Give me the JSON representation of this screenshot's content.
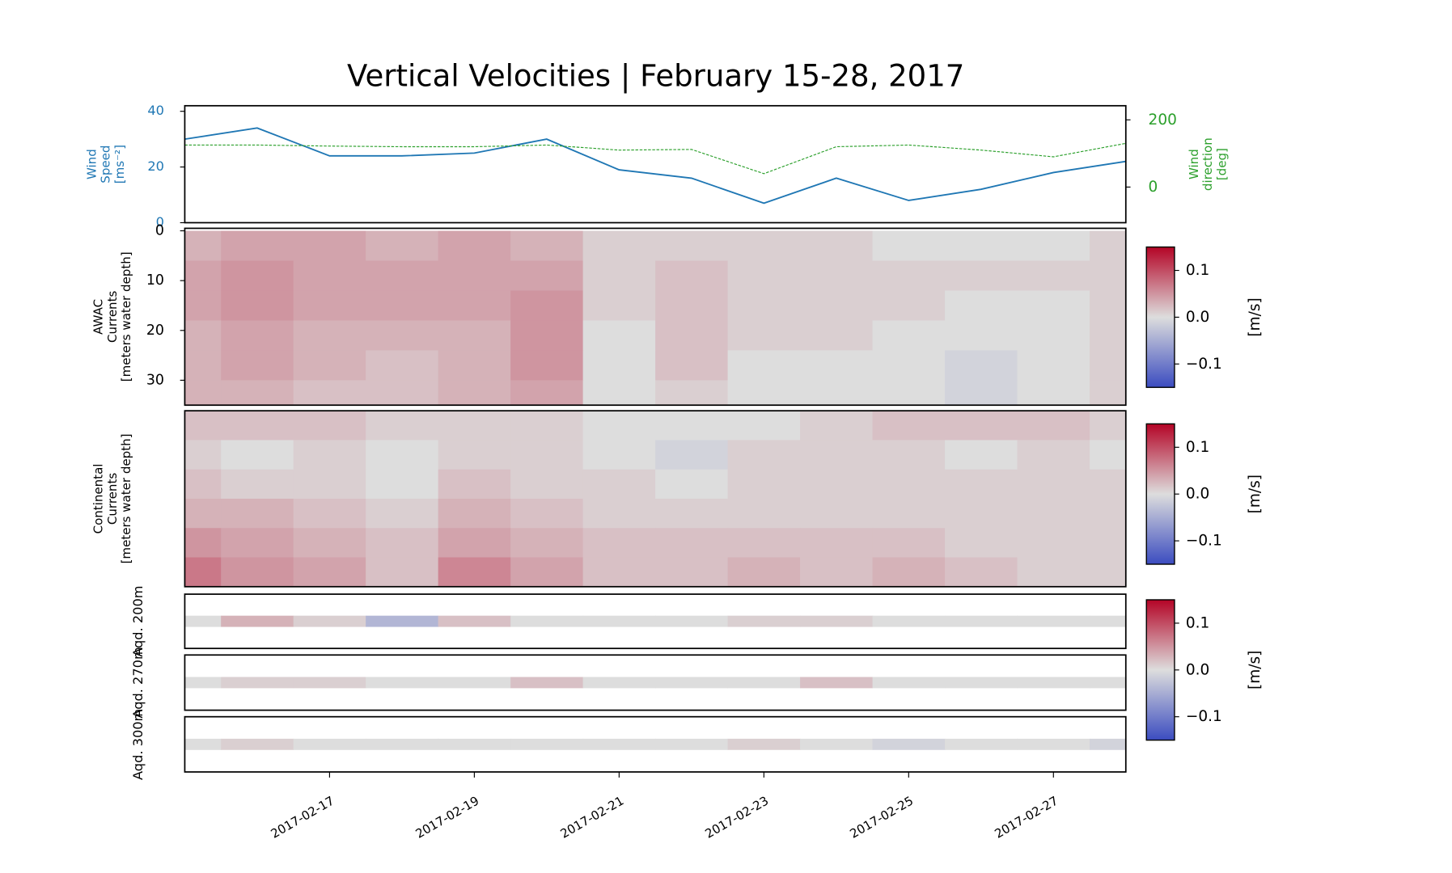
{
  "title": "Vertical Velocities | February 15-28, 2017",
  "chart_data": [
    {
      "type": "line",
      "ylabel": [
        "Wind",
        "Speed",
        "[ms⁻²]"
      ],
      "y2label": [
        "Wind",
        "direction",
        "[deg]"
      ],
      "x": [
        "2017-02-15",
        "2017-02-16",
        "2017-02-17",
        "2017-02-18",
        "2017-02-19",
        "2017-02-20",
        "2017-02-21",
        "2017-02-22",
        "2017-02-23",
        "2017-02-24",
        "2017-02-25",
        "2017-02-26",
        "2017-02-27",
        "2017-02-28"
      ],
      "series": [
        {
          "color": "#1f77b4",
          "values": [
            30,
            34,
            24,
            24,
            25,
            30,
            19,
            16,
            7,
            16,
            8,
            12,
            18,
            22
          ]
        },
        {
          "color": "#2ca02c",
          "axis": "y2",
          "values": [
            125,
            125,
            122,
            120,
            120,
            125,
            110,
            112,
            40,
            120,
            125,
            110,
            90,
            130
          ]
        }
      ],
      "xlim": [
        "2017-02-15",
        "2017-02-28"
      ],
      "ylim": [
        0,
        42
      ],
      "yticks": [
        0,
        20,
        40
      ],
      "y2lim": [
        -106,
        242
      ],
      "y2ticks": [
        0,
        200
      ]
    },
    {
      "type": "heatmap",
      "ylabel": [
        "AWAC",
        "Currents",
        "[meters water depth]"
      ],
      "x": [
        "2017-02-15",
        "2017-02-16",
        "2017-02-17",
        "2017-02-18",
        "2017-02-19",
        "2017-02-20",
        "2017-02-21",
        "2017-02-22",
        "2017-02-23",
        "2017-02-24",
        "2017-02-25",
        "2017-02-26",
        "2017-02-27",
        "2017-02-28"
      ],
      "y": [
        3,
        9,
        15,
        21,
        27,
        33
      ],
      "values": [
        [
          0.03,
          0.04,
          0.04,
          0.03,
          0.04,
          0.03,
          0.01,
          0.01,
          0.01,
          0.01,
          0.0,
          0.0,
          0.0,
          0.01
        ],
        [
          0.04,
          0.05,
          0.04,
          0.04,
          0.04,
          0.04,
          0.01,
          0.02,
          0.01,
          0.01,
          0.01,
          0.01,
          0.01,
          0.01
        ],
        [
          0.04,
          0.05,
          0.04,
          0.04,
          0.04,
          0.05,
          0.01,
          0.02,
          0.01,
          0.01,
          0.01,
          0.0,
          0.0,
          0.01
        ],
        [
          0.03,
          0.04,
          0.03,
          0.03,
          0.03,
          0.05,
          0.0,
          0.02,
          0.01,
          0.01,
          0.0,
          0.0,
          0.0,
          0.01
        ],
        [
          0.03,
          0.04,
          0.03,
          0.02,
          0.03,
          0.05,
          0.0,
          0.02,
          0.0,
          0.0,
          0.0,
          -0.01,
          0.0,
          0.01
        ],
        [
          0.03,
          0.03,
          0.02,
          0.02,
          0.03,
          0.04,
          0.0,
          0.01,
          0.0,
          0.0,
          0.0,
          -0.01,
          0.0,
          0.01
        ]
      ],
      "xlim": [
        "2017-02-15",
        "2017-02-28"
      ],
      "ylim": [
        35,
        -0.5
      ],
      "yticks": [
        0,
        10,
        20,
        30
      ],
      "clim": [
        -0.15,
        0.15
      ],
      "colormap": [
        "#3b4cc0",
        "#dddddd",
        "#b40426"
      ],
      "colorbar_ticks": [
        {
          "value": 0.1,
          "label": "0.1"
        },
        {
          "value": 0,
          "label": "0.0"
        },
        {
          "value": -0.1,
          "label": "−0.1"
        }
      ],
      "colorbar_label": "[m/s]"
    },
    {
      "type": "heatmap",
      "ylabel": [
        "Continental",
        "Currents",
        "[meters water depth]"
      ],
      "x": [
        "2017-02-15",
        "2017-02-16",
        "2017-02-17",
        "2017-02-18",
        "2017-02-19",
        "2017-02-20",
        "2017-02-21",
        "2017-02-22",
        "2017-02-23",
        "2017-02-24",
        "2017-02-25",
        "2017-02-26",
        "2017-02-27",
        "2017-02-28"
      ],
      "values": [
        [
          0.02,
          0.02,
          0.02,
          0.01,
          0.01,
          0.01,
          0.0,
          0.0,
          0.0,
          0.01,
          0.02,
          0.02,
          0.02,
          0.01
        ],
        [
          0.01,
          0.0,
          0.01,
          0.0,
          0.01,
          0.01,
          0.0,
          -0.01,
          0.01,
          0.01,
          0.01,
          0.0,
          0.01,
          0.0
        ],
        [
          0.02,
          0.01,
          0.01,
          0.0,
          0.02,
          0.01,
          0.01,
          0.0,
          0.01,
          0.01,
          0.01,
          0.01,
          0.01,
          0.01
        ],
        [
          0.03,
          0.03,
          0.02,
          0.01,
          0.03,
          0.02,
          0.01,
          0.01,
          0.01,
          0.01,
          0.01,
          0.01,
          0.01,
          0.01
        ],
        [
          0.05,
          0.04,
          0.03,
          0.02,
          0.04,
          0.03,
          0.02,
          0.02,
          0.02,
          0.02,
          0.02,
          0.01,
          0.01,
          0.01
        ],
        [
          0.07,
          0.05,
          0.04,
          0.02,
          0.06,
          0.04,
          0.02,
          0.02,
          0.03,
          0.02,
          0.03,
          0.02,
          0.01,
          0.01
        ]
      ],
      "xlim": [
        "2017-02-15",
        "2017-02-28"
      ],
      "clim": [
        -0.15,
        0.15
      ],
      "colormap": [
        "#3b4cc0",
        "#dddddd",
        "#b40426"
      ],
      "colorbar_ticks": [
        {
          "value": 0.1,
          "label": "0.1"
        },
        {
          "value": 0,
          "label": "0.0"
        },
        {
          "value": -0.1,
          "label": "−0.1"
        }
      ],
      "colorbar_label": "[m/s]"
    },
    {
      "type": "heatmap-rows",
      "x": [
        "2017-02-15",
        "2017-02-16",
        "2017-02-17",
        "2017-02-18",
        "2017-02-19",
        "2017-02-20",
        "2017-02-21",
        "2017-02-22",
        "2017-02-23",
        "2017-02-24",
        "2017-02-25",
        "2017-02-26",
        "2017-02-27",
        "2017-02-28"
      ],
      "series": [
        {
          "name": "Aqd. 200m",
          "values": [
            0.0,
            0.03,
            0.01,
            -0.04,
            0.02,
            0.0,
            0.0,
            0.0,
            0.01,
            0.01,
            0.0,
            0.0,
            0.0,
            0.0
          ]
        },
        {
          "name": "Aqd. 270m",
          "values": [
            0.0,
            0.01,
            0.01,
            0.0,
            0.0,
            0.02,
            0.0,
            0.0,
            0.0,
            0.02,
            0.0,
            0.0,
            0.0,
            0.0
          ]
        },
        {
          "name": "Aqd. 300m",
          "values": [
            0.0,
            0.01,
            0.0,
            0.0,
            0.0,
            0.0,
            0.0,
            0.0,
            0.01,
            0.0,
            -0.01,
            0.0,
            0.0,
            -0.01
          ]
        }
      ],
      "xlim": [
        "2017-02-15",
        "2017-02-28"
      ],
      "xticks": [
        "2017-02-17",
        "2017-02-19",
        "2017-02-21",
        "2017-02-23",
        "2017-02-25",
        "2017-02-27"
      ],
      "clim": [
        -0.15,
        0.15
      ],
      "colormap": [
        "#3b4cc0",
        "#dddddd",
        "#b40426"
      ],
      "colorbar_ticks": [
        {
          "value": 0.1,
          "label": "0.1"
        },
        {
          "value": 0,
          "label": "0.0"
        },
        {
          "value": -0.1,
          "label": "−0.1"
        }
      ],
      "colorbar_label": "[m/s]"
    }
  ]
}
